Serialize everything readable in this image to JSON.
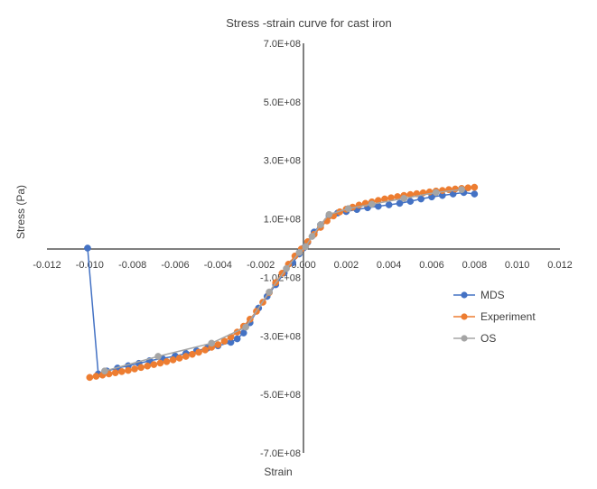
{
  "chart_data": {
    "type": "scatter",
    "title": "Stress -strain curve for cast iron",
    "xlabel": "Strain",
    "ylabel": "Stress (Pa)",
    "xlim": [
      -0.012,
      0.012
    ],
    "ylim": [
      -700000000,
      700000000
    ],
    "x_ticks": [
      "-0.012",
      "-0.010",
      "-0.008",
      "-0.006",
      "-0.004",
      "-0.002",
      "0.000",
      "0.002",
      "0.004",
      "0.006",
      "0.008",
      "0.010",
      "0.012"
    ],
    "x_tick_values": [
      -0.012,
      -0.01,
      -0.008,
      -0.006,
      -0.004,
      -0.002,
      0,
      0.002,
      0.004,
      0.006,
      0.008,
      0.01,
      0.012
    ],
    "y_ticks": [
      "7.0E+08",
      "5.0E+08",
      "3.0E+08",
      "1.0E+08",
      "-1.0E+08",
      "-3.0E+08",
      "-5.0E+08",
      "-7.0E+08"
    ],
    "y_tick_values": [
      700000000,
      500000000,
      300000000,
      100000000,
      -100000000,
      -300000000,
      -500000000,
      -700000000
    ],
    "grid": false,
    "legend_position": "right",
    "series": [
      {
        "name": "MDS",
        "color": "#4472C4",
        "x": [
          -0.0101,
          -0.0096,
          -0.0092,
          -0.0087,
          -0.0082,
          -0.0077,
          -0.0072,
          -0.0066,
          -0.006,
          -0.0055,
          -0.005,
          -0.0045,
          -0.004,
          -0.0034,
          -0.0031,
          -0.0028,
          -0.0025,
          -0.0021,
          -0.0017,
          -0.0013,
          -0.0009,
          -0.0005,
          -0.0002,
          0.0,
          0.0002,
          0.0005,
          0.0008,
          0.0012,
          0.0016,
          0.002,
          0.0025,
          0.003,
          0.0035,
          0.004,
          0.0045,
          0.005,
          0.0055,
          0.006,
          0.0065,
          0.007,
          0.0075,
          0.008
        ],
        "y": [
          0,
          -430000000,
          -420000000,
          -410000000,
          -402000000,
          -394000000,
          -385000000,
          -377000000,
          -369000000,
          -360000000,
          -351000000,
          -342000000,
          -334000000,
          -322000000,
          -310000000,
          -290000000,
          -255000000,
          -205000000,
          -165000000,
          -125000000,
          -85000000,
          -50000000,
          -20000000,
          0,
          20000000,
          55000000,
          80000000,
          110000000,
          120000000,
          125000000,
          132000000,
          138000000,
          143000000,
          148000000,
          153000000,
          160000000,
          168000000,
          175000000,
          180000000,
          185000000,
          190000000,
          185000000
        ]
      },
      {
        "name": "Experiment",
        "color": "#ED7D31",
        "x": [
          -0.01,
          -0.0097,
          -0.0094,
          -0.0091,
          -0.0088,
          -0.0085,
          -0.0082,
          -0.0079,
          -0.0076,
          -0.0073,
          -0.007,
          -0.0067,
          -0.0064,
          -0.0061,
          -0.0058,
          -0.0055,
          -0.0052,
          -0.0049,
          -0.0046,
          -0.0043,
          -0.004,
          -0.0037,
          -0.0034,
          -0.0031,
          -0.0028,
          -0.0025,
          -0.0022,
          -0.0019,
          -0.0016,
          -0.0013,
          -0.001,
          -0.0007,
          -0.0004,
          -0.0001,
          0.0002,
          0.0005,
          0.0008,
          0.0011,
          0.0014,
          0.0017,
          0.002,
          0.0023,
          0.0026,
          0.0029,
          0.0032,
          0.0035,
          0.0038,
          0.0041,
          0.0044,
          0.0047,
          0.005,
          0.0053,
          0.0056,
          0.0059,
          0.0062,
          0.0065,
          0.0068,
          0.0071,
          0.0074,
          0.0077,
          0.008
        ],
        "y": [
          -442000000,
          -438000000,
          -434000000,
          -430000000,
          -426000000,
          -422000000,
          -418000000,
          -413000000,
          -408000000,
          -403000000,
          -398000000,
          -393000000,
          -388000000,
          -382000000,
          -376000000,
          -370000000,
          -363000000,
          -356000000,
          -348000000,
          -339000000,
          -330000000,
          -318000000,
          -304000000,
          -287000000,
          -267000000,
          -243000000,
          -216000000,
          -185000000,
          -152000000,
          -118000000,
          -86000000,
          -55000000,
          -27000000,
          -3000000,
          22000000,
          47000000,
          71000000,
          93000000,
          110000000,
          124000000,
          133000000,
          140000000,
          147000000,
          153000000,
          158000000,
          163000000,
          168000000,
          172000000,
          176000000,
          180000000,
          183000000,
          186000000,
          189000000,
          192000000,
          195000000,
          197000000,
          200000000,
          202000000,
          204000000,
          206000000,
          208000000
        ]
      },
      {
        "name": "OS",
        "color": "#A5A5A5",
        "x": [
          -0.0093,
          -0.0068,
          -0.0043,
          -0.0027,
          -0.0016,
          -0.0008,
          -0.0002,
          0.0001,
          0.0004,
          0.0008,
          0.0012,
          0.0021,
          0.0032,
          0.0047,
          0.0062,
          0.0074
        ],
        "y": [
          -420000000,
          -370000000,
          -325000000,
          -270000000,
          -150000000,
          -70000000,
          -15000000,
          5000000,
          40000000,
          80000000,
          115000000,
          135000000,
          150000000,
          170000000,
          190000000,
          200000000
        ]
      }
    ]
  }
}
